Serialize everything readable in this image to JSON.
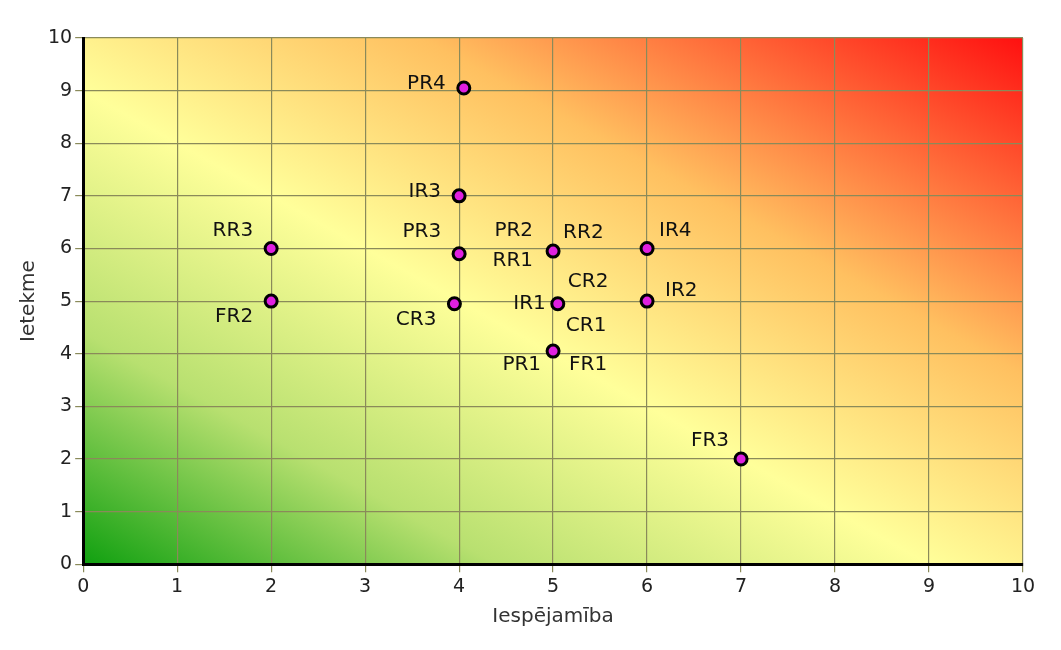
{
  "chart_data": {
    "type": "scatter",
    "xlabel": "Iespējamība",
    "ylabel": "Ietekme",
    "x": [
      4.05,
      4.0,
      4.0,
      2.0,
      2.0,
      3.95,
      5.0,
      6.0,
      5.05,
      6.0,
      5.0,
      7.0
    ],
    "series": [
      {
        "color": "#e020e0",
        "values": [
          9.05,
          7.0,
          5.9,
          6.0,
          5.0,
          4.95,
          5.95,
          6.0,
          4.95,
          5.0,
          4.05,
          2.0
        ]
      }
    ],
    "xlim": [
      0,
      10
    ],
    "ylim": [
      0,
      10
    ],
    "xticks": [
      0,
      1,
      2,
      3,
      4,
      5,
      6,
      7,
      8,
      9,
      10
    ],
    "yticks": [
      0,
      1,
      2,
      3,
      4,
      5,
      6,
      7,
      8,
      9,
      10
    ],
    "grid": true,
    "legend": false,
    "marker": "circle",
    "annotations": [
      {
        "text": "PR4",
        "x": 4.05,
        "y": 9.05
      },
      {
        "text": "IR3",
        "x": 4.0,
        "y": 7.0
      },
      {
        "text": "PR3",
        "x": 4.0,
        "y": 5.9
      },
      {
        "text": "RR3",
        "x": 2.0,
        "y": 6.0
      },
      {
        "text": "FR2",
        "x": 2.0,
        "y": 5.0
      },
      {
        "text": "CR3",
        "x": 3.95,
        "y": 4.95
      },
      {
        "text": "PR2",
        "x": 5.0,
        "y": 5.95
      },
      {
        "text": "RR2",
        "x": 5.0,
        "y": 5.95
      },
      {
        "text": "RR1",
        "x": 5.0,
        "y": 5.95
      },
      {
        "text": "IR4",
        "x": 6.0,
        "y": 6.0
      },
      {
        "text": "IR1",
        "x": 5.05,
        "y": 4.95
      },
      {
        "text": "CR2",
        "x": 5.05,
        "y": 4.95
      },
      {
        "text": "CR1",
        "x": 5.05,
        "y": 4.95
      },
      {
        "text": "IR2",
        "x": 6.0,
        "y": 5.0
      },
      {
        "text": "PR1",
        "x": 5.0,
        "y": 4.05
      },
      {
        "text": "FR1",
        "x": 5.0,
        "y": 4.05
      },
      {
        "text": "FR3",
        "x": 7.0,
        "y": 2.0
      }
    ]
  }
}
